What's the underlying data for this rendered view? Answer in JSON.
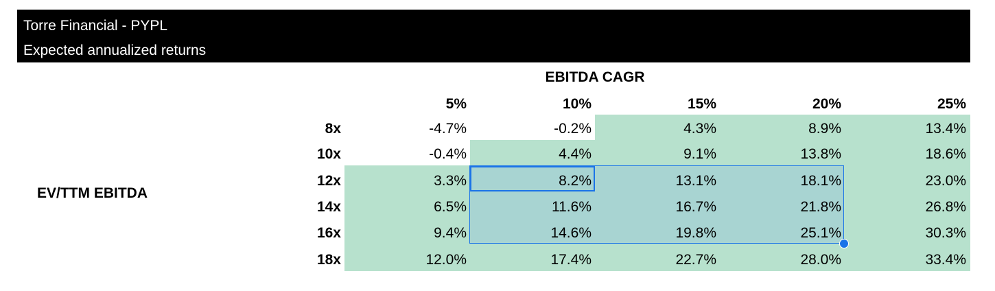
{
  "header": {
    "title": "Torre Financial - PYPL",
    "subtitle": "Expected annualized returns"
  },
  "column_axis_title": "EBITDA CAGR",
  "row_axis_title": "EV/TTM EBITDA",
  "columns": [
    "5%",
    "10%",
    "15%",
    "20%",
    "25%"
  ],
  "rows": [
    {
      "label": "8x",
      "values": [
        "-4.7%",
        "-0.2%",
        "4.3%",
        "8.9%",
        "13.4%"
      ]
    },
    {
      "label": "10x",
      "values": [
        "-0.4%",
        "4.4%",
        "9.1%",
        "13.8%",
        "18.6%"
      ]
    },
    {
      "label": "12x",
      "values": [
        "3.3%",
        "8.2%",
        "13.1%",
        "18.1%",
        "23.0%"
      ]
    },
    {
      "label": "14x",
      "values": [
        "6.5%",
        "11.6%",
        "16.7%",
        "21.8%",
        "26.8%"
      ]
    },
    {
      "label": "16x",
      "values": [
        "9.4%",
        "14.6%",
        "19.8%",
        "25.1%",
        "30.3%"
      ]
    },
    {
      "label": "18x",
      "values": [
        "12.0%",
        "17.4%",
        "22.7%",
        "28.0%",
        "33.4%"
      ]
    }
  ],
  "colors": {
    "header_bg": "#000000",
    "header_text": "#ffffff",
    "highlight_green": "#b7e1cd",
    "selection_blue": "#1a73e8"
  }
}
